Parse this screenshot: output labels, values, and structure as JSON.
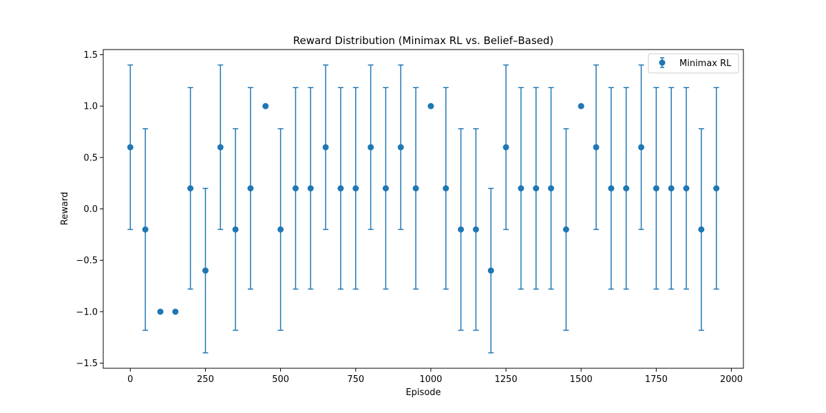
{
  "chart_data": {
    "type": "scatter",
    "title": "Reward Distribution (Minimax RL vs. Belief–Based)",
    "xlabel": "Episode",
    "ylabel": "Reward",
    "xlim": [
      -90,
      2040
    ],
    "ylim": [
      -1.55,
      1.55
    ],
    "x_ticks": [
      0,
      250,
      500,
      750,
      1000,
      1250,
      1500,
      1750,
      2000
    ],
    "y_ticks": [
      -1.5,
      -1.0,
      -0.5,
      0.0,
      0.5,
      1.0,
      1.5
    ],
    "x_tick_labels": [
      "0",
      "250",
      "500",
      "750",
      "1000",
      "1250",
      "1500",
      "1750",
      "2000"
    ],
    "y_tick_labels": [
      "−1.5",
      "−1.0",
      "−0.5",
      "0.0",
      "0.5",
      "1.0",
      "1.5"
    ],
    "grid": false,
    "legend_position": "top-right",
    "series": [
      {
        "name": "Minimax RL",
        "color": "#1f77b4",
        "x": [
          0,
          50,
          100,
          150,
          200,
          250,
          300,
          350,
          400,
          450,
          500,
          550,
          600,
          650,
          700,
          750,
          800,
          850,
          900,
          950,
          1000,
          1050,
          1100,
          1150,
          1200,
          1250,
          1300,
          1350,
          1400,
          1450,
          1500,
          1550,
          1600,
          1650,
          1700,
          1750,
          1800,
          1850,
          1900,
          1950
        ],
        "y": [
          0.6,
          -0.2,
          -1.0,
          -1.0,
          0.2,
          -0.6,
          0.6,
          -0.2,
          0.2,
          1.0,
          -0.2,
          0.2,
          0.2,
          0.6,
          0.2,
          0.2,
          0.6,
          0.2,
          0.6,
          0.2,
          1.0,
          0.2,
          -0.2,
          -0.2,
          -0.6,
          0.6,
          0.2,
          0.2,
          0.2,
          -0.2,
          1.0,
          0.6,
          0.2,
          0.2,
          0.6,
          0.2,
          0.2,
          0.2,
          -0.2,
          0.2
        ],
        "error": [
          0.8,
          0.98,
          0,
          0,
          0.98,
          0.8,
          0.8,
          0.98,
          0.98,
          0,
          0.98,
          0.98,
          0.98,
          0.8,
          0.98,
          0.98,
          0.8,
          0.98,
          0.8,
          0.98,
          0,
          0.98,
          0.98,
          0.98,
          0.8,
          0.8,
          0.98,
          0.98,
          0.98,
          0.98,
          0,
          0.8,
          0.98,
          0.98,
          0.8,
          0.98,
          0.98,
          0.98,
          0.98,
          0.98
        ]
      }
    ]
  }
}
